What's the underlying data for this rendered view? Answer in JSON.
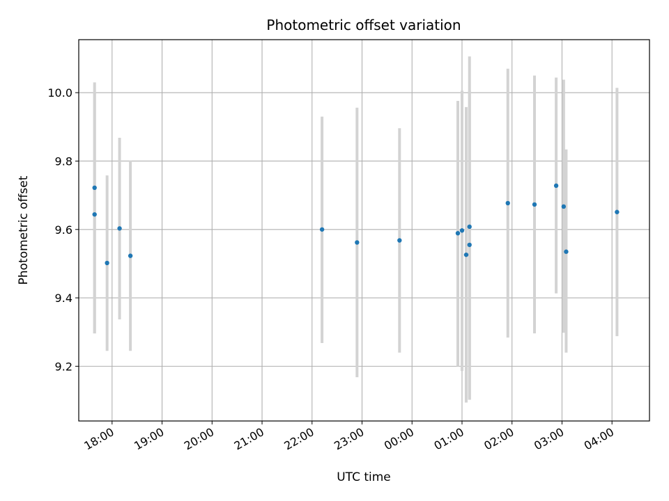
{
  "chart_data": {
    "type": "scatter",
    "title": "Photometric offset variation",
    "xlabel": "UTC time",
    "ylabel": "Photometric offset",
    "x_axis": "time",
    "xlim": [
      "17:20",
      "04:45"
    ],
    "x_ticks": [
      "18:00",
      "19:00",
      "20:00",
      "21:00",
      "22:00",
      "23:00",
      "00:00",
      "01:00",
      "02:00",
      "03:00",
      "04:00"
    ],
    "ylim": [
      9.04,
      10.155
    ],
    "y_ticks": [
      9.2,
      9.4,
      9.6,
      9.8,
      10.0
    ],
    "y_tick_labels": [
      "9.2",
      "9.4",
      "9.6",
      "9.8",
      "10.0"
    ],
    "grid": true,
    "point_color": "#1f77b4",
    "errorbar_color": "#d3d3d3",
    "points": [
      {
        "time": "17:39",
        "y": 9.722,
        "err_low": 9.296,
        "err_high": 10.0
      },
      {
        "time": "17:39",
        "y": 9.644,
        "err_low": 9.296,
        "err_high": 10.03
      },
      {
        "time": "17:54",
        "y": 9.502,
        "err_low": 9.245,
        "err_high": 9.758
      },
      {
        "time": "18:09",
        "y": 9.603,
        "err_low": 9.337,
        "err_high": 9.868
      },
      {
        "time": "18:22",
        "y": 9.523,
        "err_low": 9.245,
        "err_high": 9.802
      },
      {
        "time": "22:12",
        "y": 9.6,
        "err_low": 9.268,
        "err_high": 9.93
      },
      {
        "time": "22:54",
        "y": 9.562,
        "err_low": 9.168,
        "err_high": 9.956
      },
      {
        "time": "23:45",
        "y": 9.568,
        "err_low": 9.24,
        "err_high": 9.896
      },
      {
        "time": "00:55",
        "y": 9.589,
        "err_low": 9.2,
        "err_high": 9.976
      },
      {
        "time": "01:00",
        "y": 9.597,
        "err_low": 9.186,
        "err_high": 10.006
      },
      {
        "time": "01:05",
        "y": 9.526,
        "err_low": 9.094,
        "err_high": 9.958
      },
      {
        "time": "01:09",
        "y": 9.608,
        "err_low": 9.102,
        "err_high": 10.106
      },
      {
        "time": "01:09",
        "y": 9.555,
        "err_low": 9.102,
        "err_high": 10.006
      },
      {
        "time": "01:55",
        "y": 9.677,
        "err_low": 9.284,
        "err_high": 10.07
      },
      {
        "time": "02:27",
        "y": 9.673,
        "err_low": 9.296,
        "err_high": 10.05
      },
      {
        "time": "02:53",
        "y": 9.728,
        "err_low": 9.413,
        "err_high": 10.044
      },
      {
        "time": "03:02",
        "y": 9.667,
        "err_low": 9.298,
        "err_high": 10.038
      },
      {
        "time": "03:05",
        "y": 9.535,
        "err_low": 9.24,
        "err_high": 9.834
      },
      {
        "time": "04:06",
        "y": 9.651,
        "err_low": 9.288,
        "err_high": 10.014
      }
    ]
  }
}
